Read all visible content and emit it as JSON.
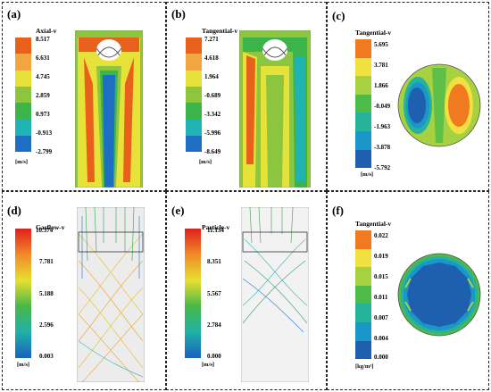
{
  "panels": [
    {
      "label": "(a)",
      "title": "Axial-v",
      "ticks": [
        "8.517",
        "6.631",
        "4.745",
        "2.859",
        "0.973",
        "-0.913",
        "-2.799"
      ],
      "unit": "[m/s]",
      "colors": [
        "#e8601c",
        "#f1a640",
        "#e6e23a",
        "#8cc63f",
        "#3bb54a",
        "#1fb3b3",
        "#1e6fc4"
      ]
    },
    {
      "label": "(b)",
      "title": "Tangential-v",
      "ticks": [
        "7.271",
        "4.618",
        "1.964",
        "-0.689",
        "-3.342",
        "-5.996",
        "-8.649"
      ],
      "unit": "[m/s]",
      "colors": [
        "#e8601c",
        "#f1a640",
        "#e6e23a",
        "#8cc63f",
        "#3bb54a",
        "#1fb3b3",
        "#1e6fc4"
      ]
    },
    {
      "label": "(c)",
      "title": "Tangential-v",
      "ticks": [
        "5.695",
        "3.781",
        "1.866",
        "-0.049",
        "-1.963",
        "-3.878",
        "-5.792"
      ],
      "unit": "[m/s]",
      "colors": [
        "#f07a20",
        "#f0e040",
        "#a6d140",
        "#4cbb48",
        "#26b39b",
        "#1a96c8",
        "#1e5fb0"
      ]
    },
    {
      "label": "(d)",
      "title": "Gasflow-v",
      "ticks": [
        "10.374",
        "7.781",
        "5.188",
        "2.596",
        "0.003"
      ],
      "unit": "[m/s]"
    },
    {
      "label": "(e)",
      "title": "Particle-v",
      "ticks": [
        "11.134",
        "8.351",
        "5.567",
        "2.784",
        "0.000"
      ],
      "unit": "[m/s]"
    },
    {
      "label": "(f)",
      "title": "Tangential-v",
      "ticks": [
        "0.022",
        "0.019",
        "0.015",
        "0.011",
        "0.007",
        "0.004",
        "0.000"
      ],
      "unit": "[kg/m³]",
      "colors": [
        "#f07a20",
        "#f0e040",
        "#a6d140",
        "#4cbb48",
        "#26b39b",
        "#1a96c8",
        "#1e5fb0"
      ]
    }
  ]
}
